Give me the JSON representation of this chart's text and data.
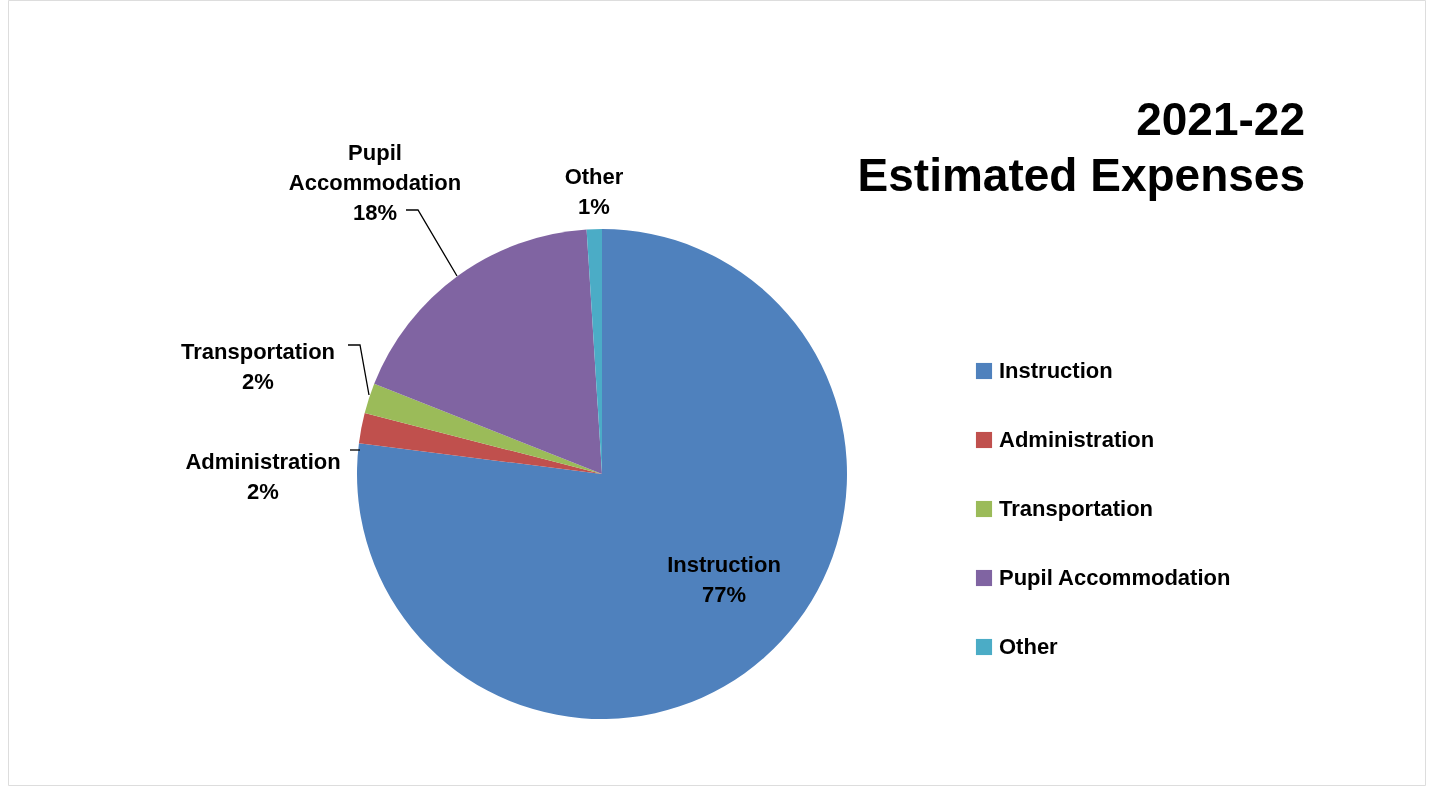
{
  "chart_data": {
    "type": "pie",
    "title": "2021-22\nEstimated Expenses",
    "categories": [
      "Instruction",
      "Administration",
      "Transportation",
      "Pupil Accommodation",
      "Other"
    ],
    "values": [
      77,
      2,
      2,
      18,
      1
    ],
    "value_labels": [
      "77%",
      "2%",
      "2%",
      "18%",
      "1%"
    ],
    "colors": [
      "#4f81bd",
      "#c0504d",
      "#9bbb59",
      "#8064a2",
      "#4bacc6"
    ],
    "legend": "right"
  }
}
